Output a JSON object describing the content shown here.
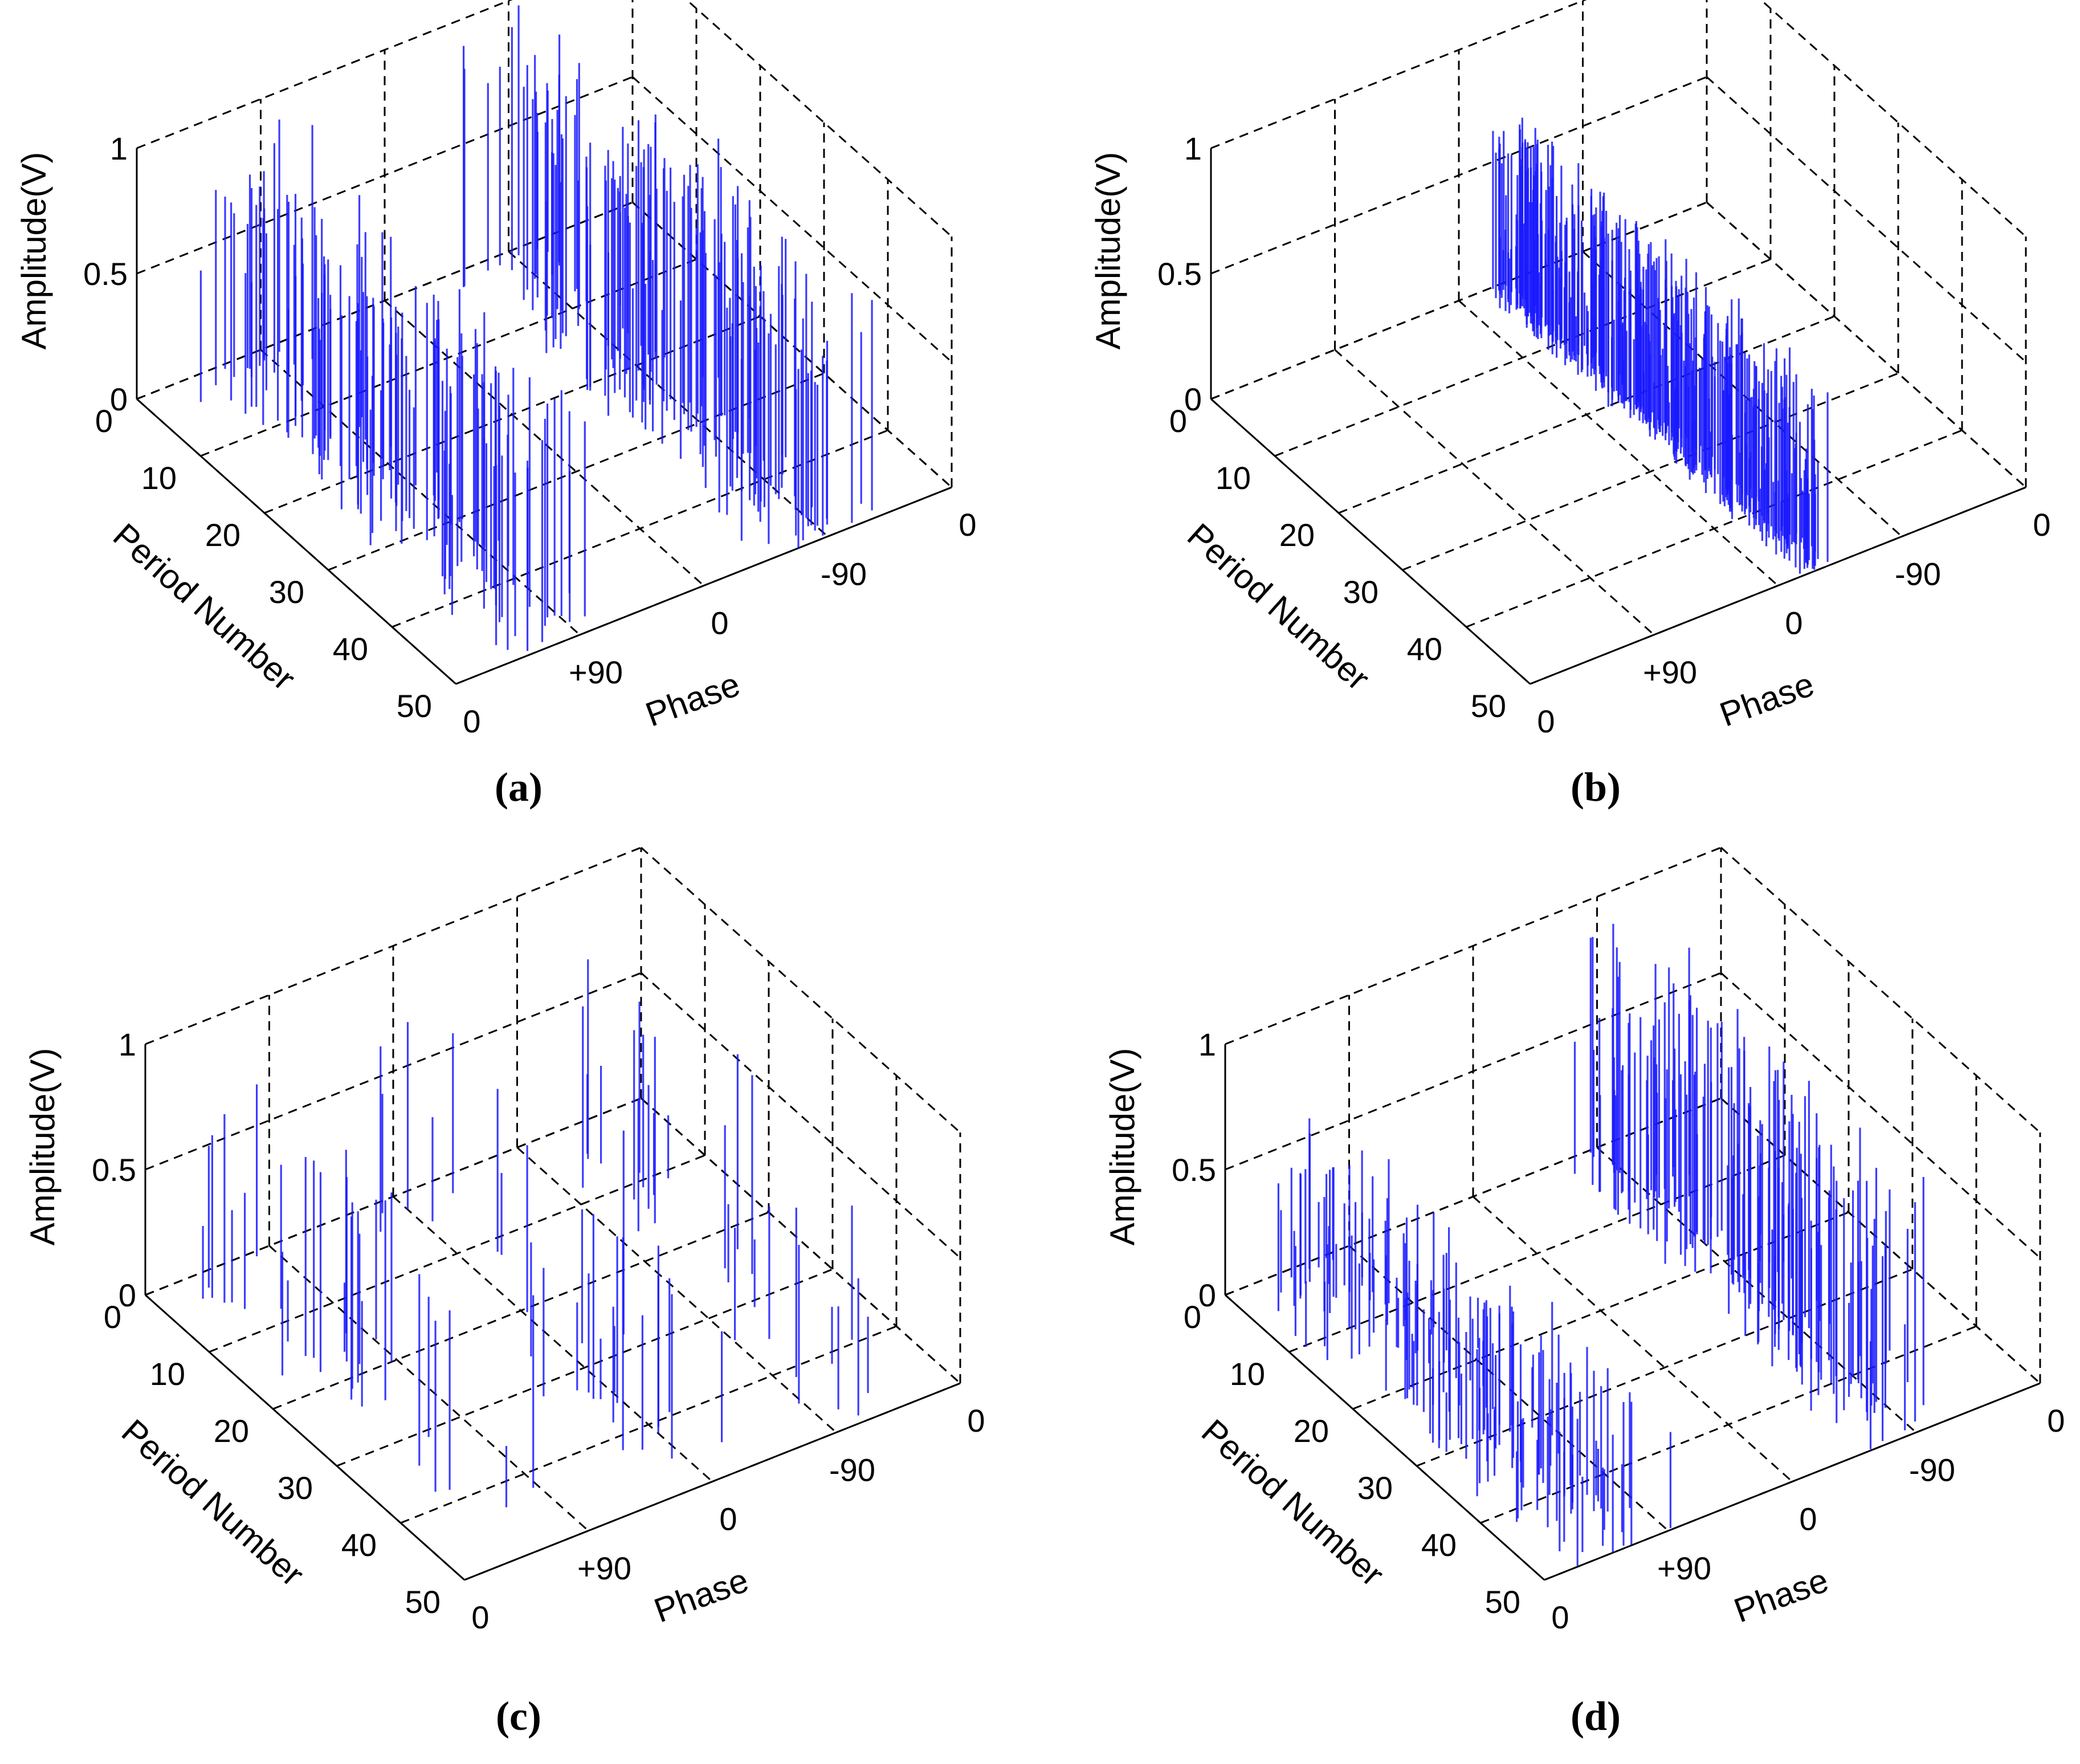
{
  "chart_data": [
    {
      "type": "stem3d",
      "caption": "(a)",
      "xlabel": "Period Number",
      "ylabel": "Phase",
      "zlabel": "Amplitude(V)",
      "x_ticks": [
        "0",
        "10",
        "20",
        "30",
        "40",
        "50"
      ],
      "y_ticks": [
        "0",
        "+90",
        "0",
        "-90",
        "0"
      ],
      "z_ticks": [
        "0",
        "0.5",
        "1"
      ],
      "xlim": [
        0,
        50
      ],
      "ylim": [
        0,
        360
      ],
      "zlim": [
        0,
        1
      ],
      "grid": true,
      "stem_color": "#1a1aff",
      "clusters": [
        {
          "phase_center": 70,
          "phase_spread": 42,
          "amp_min": 0.45,
          "amp_max": 0.95,
          "count": 130
        },
        {
          "phase_center": 265,
          "phase_spread": 45,
          "amp_min": 0.5,
          "amp_max": 1.0,
          "count": 150
        }
      ]
    },
    {
      "type": "stem3d",
      "caption": "(b)",
      "xlabel": "Period Number",
      "ylabel": "Phase",
      "zlabel": "Amplitude(V)",
      "x_ticks": [
        "0",
        "10",
        "20",
        "30",
        "40",
        "50"
      ],
      "y_ticks": [
        "0",
        "+90",
        "0",
        "-90",
        "0"
      ],
      "z_ticks": [
        "0",
        "0.5",
        "1"
      ],
      "xlim": [
        0,
        50
      ],
      "ylim": [
        0,
        360
      ],
      "zlim": [
        0,
        1
      ],
      "grid": true,
      "stem_color": "#1a1aff",
      "clusters": [
        {
          "phase_center": 208,
          "phase_spread": 14,
          "amp_min": 0.15,
          "amp_max": 0.75,
          "count": 380
        }
      ]
    },
    {
      "type": "stem3d",
      "caption": "(c)",
      "xlabel": "Period Number",
      "ylabel": "Phase",
      "zlabel": "Amplitude(V)",
      "x_ticks": [
        "0",
        "10",
        "20",
        "30",
        "40",
        "50"
      ],
      "y_ticks": [
        "0",
        "+90",
        "0",
        "-90",
        "0"
      ],
      "z_ticks": [
        "0",
        "0.5",
        "1"
      ],
      "xlim": [
        0,
        50
      ],
      "ylim": [
        0,
        360
      ],
      "zlim": [
        0,
        1
      ],
      "grid": true,
      "stem_color": "#1a1aff",
      "clusters": [
        {
          "phase_center": 55,
          "phase_spread": 45,
          "amp_min": 0.2,
          "amp_max": 0.8,
          "count": 30
        },
        {
          "phase_center": 180,
          "phase_spread": 40,
          "amp_min": 0.2,
          "amp_max": 0.85,
          "count": 26
        },
        {
          "phase_center": 300,
          "phase_spread": 40,
          "amp_min": 0.2,
          "amp_max": 0.8,
          "count": 26
        }
      ]
    },
    {
      "type": "stem3d",
      "caption": "(d)",
      "xlabel": "Period Number",
      "ylabel": "Phase",
      "zlabel": "Amplitude(V)",
      "x_ticks": [
        "0",
        "10",
        "20",
        "30",
        "40",
        "50"
      ],
      "y_ticks": [
        "0",
        "+90",
        "0",
        "-90",
        "0"
      ],
      "z_ticks": [
        "0",
        "0.5",
        "1"
      ],
      "xlim": [
        0,
        50
      ],
      "ylim": [
        0,
        360
      ],
      "zlim": [
        0,
        1
      ],
      "grid": true,
      "stem_color": "#1a1aff",
      "clusters": [
        {
          "phase_center": 55,
          "phase_spread": 50,
          "amp_min": 0.15,
          "amp_max": 0.6,
          "count": 140
        },
        {
          "phase_center": 265,
          "phase_spread": 40,
          "amp_min": 0.3,
          "amp_max": 1.0,
          "count": 150
        }
      ]
    }
  ]
}
